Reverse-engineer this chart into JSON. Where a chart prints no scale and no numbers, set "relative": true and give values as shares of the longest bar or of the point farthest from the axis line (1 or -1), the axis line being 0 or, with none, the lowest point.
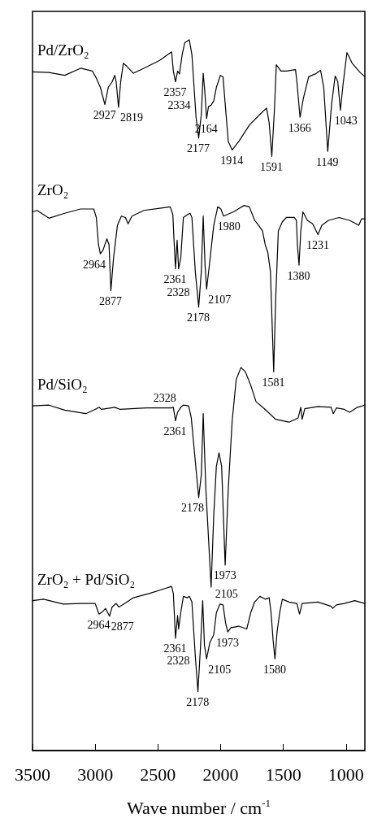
{
  "chart_data": {
    "type": "line",
    "relative": true,
    "xlabel": "Wave number / cm$^{-1}$",
    "xlim": [
      3500,
      850
    ],
    "xticks": [
      3500,
      3000,
      2500,
      2000,
      1500,
      1000
    ],
    "line_style": "solid",
    "series": [
      {
        "name": "Pd/ZrO₂",
        "color": "#000000",
        "x": [
          3500,
          3369,
          3243,
          3117,
          3022,
          2991,
          2959,
          2923,
          2896,
          2865,
          2844,
          2833,
          2814,
          2797,
          2776,
          2749,
          2696,
          2612,
          2486,
          2391,
          2377,
          2360,
          2343,
          2328,
          2307,
          2286,
          2250,
          2229,
          2196,
          2175,
          2154,
          2139,
          2124,
          2112,
          2097,
          2076,
          2055,
          2034,
          2002,
          1981,
          1960,
          1939,
          1908,
          1855,
          1771,
          1687,
          1634,
          1613,
          1592,
          1571,
          1556,
          1519,
          1476,
          1403,
          1392,
          1367,
          1340,
          1298,
          1245,
          1203,
          1178,
          1146,
          1115,
          1087,
          1066,
          1045,
          1024,
          993,
          951,
          888,
          850
        ],
        "values": [
          0.955,
          0.954,
          0.95,
          0.96,
          0.956,
          0.946,
          0.933,
          0.909,
          0.933,
          0.941,
          0.95,
          0.941,
          0.905,
          0.941,
          0.967,
          0.963,
          0.953,
          0.96,
          0.971,
          0.983,
          0.956,
          0.941,
          0.956,
          0.952,
          0.979,
          0.996,
          1,
          0.979,
          0.891,
          0.862,
          0.895,
          0.953,
          0.922,
          0.889,
          0.906,
          0.908,
          0.914,
          0.933,
          0.95,
          0.948,
          0.902,
          0.857,
          0.845,
          0.857,
          0.88,
          0.895,
          0.904,
          0.883,
          0.836,
          0.902,
          0.965,
          0.956,
          0.956,
          0.958,
          0.941,
          0.891,
          0.918,
          0.948,
          0.952,
          0.957,
          0.933,
          0.843,
          0.91,
          0.949,
          0.941,
          0.901,
          0.937,
          0.982,
          0.967,
          0.954,
          0.948
        ]
      },
      {
        "name": "ZrO₂",
        "color": "#000000",
        "x": [
          3500,
          3464,
          3369,
          3243,
          3117,
          3012,
          2991,
          2974,
          2959,
          2938,
          2907,
          2890,
          2875,
          2854,
          2823,
          2791,
          2759,
          2738,
          2707,
          2612,
          2486,
          2402,
          2381,
          2370,
          2360,
          2347,
          2335,
          2318,
          2297,
          2265,
          2244,
          2229,
          2202,
          2175,
          2154,
          2139,
          2124,
          2112,
          2086,
          2055,
          2023,
          1998,
          1977,
          1897,
          1813,
          1771,
          1729,
          1697,
          1666,
          1645,
          1624,
          1603,
          1577,
          1561,
          1540,
          1508,
          1476,
          1413,
          1396,
          1388,
          1375,
          1361,
          1344,
          1308,
          1266,
          1224,
          1193,
          1140,
          1056,
          972,
          898,
          877,
          850
        ],
        "values": [
          0.758,
          0.76,
          0.749,
          0.756,
          0.762,
          0.762,
          0.75,
          0.712,
          0.699,
          0.704,
          0.72,
          0.712,
          0.647,
          0.693,
          0.739,
          0.752,
          0.75,
          0.741,
          0.752,
          0.76,
          0.763,
          0.765,
          0.754,
          0.712,
          0.678,
          0.718,
          0.678,
          0.693,
          0.75,
          0.754,
          0.756,
          0.75,
          0.674,
          0.624,
          0.674,
          0.752,
          0.682,
          0.649,
          0.689,
          0.739,
          0.765,
          0.762,
          0.752,
          0.758,
          0.767,
          0.765,
          0.746,
          0.739,
          0.731,
          0.712,
          0.701,
          0.674,
          0.533,
          0.636,
          0.731,
          0.744,
          0.75,
          0.75,
          0.746,
          0.712,
          0.683,
          0.731,
          0.758,
          0.746,
          0.741,
          0.726,
          0.739,
          0.746,
          0.75,
          0.746,
          0.739,
          0.748,
          0.748
        ]
      },
      {
        "name": "Pd/SiO₂",
        "color": "#000000",
        "x": [
          3500,
          3369,
          3243,
          3075,
          3001,
          2970,
          2949,
          2844,
          2801,
          2591,
          2391,
          2377,
          2360,
          2343,
          2318,
          2297,
          2255,
          2234,
          2202,
          2175,
          2154,
          2139,
          2118,
          2076,
          2055,
          2034,
          2013,
          1992,
          1964,
          1939,
          1908,
          1876,
          1838,
          1803,
          1760,
          1718,
          1645,
          1561,
          1455,
          1382,
          1361,
          1350,
          1329,
          1224,
          1119,
          1102,
          1077,
          1014,
          972,
          909,
          850
        ],
        "values": [
          0.485,
          0.486,
          0.479,
          0.474,
          0.48,
          0.483,
          0.48,
          0.483,
          0.48,
          0.482,
          0.482,
          0.483,
          0.464,
          0.476,
          0.483,
          0.486,
          0.485,
          0.468,
          0.407,
          0.356,
          0.388,
          0.474,
          0.369,
          0.23,
          0.331,
          0.4,
          0.419,
          0.4,
          0.261,
          0.369,
          0.464,
          0.522,
          0.539,
          0.533,
          0.514,
          0.491,
          0.48,
          0.466,
          0.462,
          0.468,
          0.483,
          0.466,
          0.481,
          0.484,
          0.483,
          0.474,
          0.482,
          0.48,
          0.476,
          0.483,
          0.486
        ]
      },
      {
        "name": "ZrO₂ + Pd/SiO₂",
        "color": "#000000",
        "x": [
          3500,
          3411,
          3254,
          3117,
          3001,
          2970,
          2938,
          2917,
          2886,
          2865,
          2833,
          2812,
          2780,
          2696,
          2570,
          2444,
          2391,
          2377,
          2360,
          2343,
          2335,
          2318,
          2297,
          2265,
          2250,
          2229,
          2202,
          2181,
          2160,
          2143,
          2129,
          2112,
          2086,
          2055,
          2034,
          2006,
          1981,
          1960,
          1943,
          1918,
          1855,
          1792,
          1760,
          1729,
          1687,
          1645,
          1613,
          1598,
          1582,
          1567,
          1550,
          1529,
          1508,
          1455,
          1392,
          1371,
          1350,
          1224,
          1119,
          1106,
          1077,
          1014,
          930,
          850
        ],
        "values": [
          0.211,
          0.213,
          0.206,
          0.207,
          0.207,
          0.192,
          0.196,
          0.2,
          0.189,
          0.202,
          0.207,
          0.202,
          0.205,
          0.215,
          0.221,
          0.228,
          0.231,
          0.221,
          0.158,
          0.19,
          0.171,
          0.194,
          0.217,
          0.215,
          0.217,
          0.209,
          0.133,
          0.083,
          0.148,
          0.211,
          0.148,
          0.129,
          0.152,
          0.163,
          0.194,
          0.206,
          0.205,
          0.179,
          0.167,
          0.173,
          0.175,
          0.171,
          0.194,
          0.209,
          0.217,
          0.213,
          0.215,
          0.194,
          0.156,
          0.129,
          0.167,
          0.194,
          0.213,
          0.209,
          0.207,
          0.192,
          0.207,
          0.209,
          0.203,
          0.2,
          0.205,
          0.207,
          0.211,
          0.207
        ]
      }
    ],
    "annotations": [
      {
        "text": "2927",
        "x": 2923,
        "y": 0.909
      },
      {
        "text": "2819",
        "x": 2814,
        "y": 0.905
      },
      {
        "text": "2357",
        "x": 2360,
        "y": 0.941
      },
      {
        "text": "2334",
        "x": 2328,
        "y": 0.952
      },
      {
        "text": "2177",
        "x": 2175,
        "y": 0.862
      },
      {
        "text": "2164",
        "x": 2112,
        "y": 0.889
      },
      {
        "text": "1914",
        "x": 1908,
        "y": 0.845
      },
      {
        "text": "1591",
        "x": 1592,
        "y": 0.836
      },
      {
        "text": "1366",
        "x": 1367,
        "y": 0.891
      },
      {
        "text": "1149",
        "x": 1146,
        "y": 0.843
      },
      {
        "text": "1043",
        "x": 1045,
        "y": 0.901
      },
      {
        "text": "2964",
        "x": 2959,
        "y": 0.699
      },
      {
        "text": "2877",
        "x": 2875,
        "y": 0.647
      },
      {
        "text": "2361",
        "x": 2360,
        "y": 0.678
      },
      {
        "text": "2328",
        "x": 2335,
        "y": 0.678
      },
      {
        "text": "2178",
        "x": 2175,
        "y": 0.624
      },
      {
        "text": "2107",
        "x": 2112,
        "y": 0.649
      },
      {
        "text": "1980",
        "x": 1977,
        "y": 0.752
      },
      {
        "text": "1581",
        "x": 1577,
        "y": 0.533
      },
      {
        "text": "1380",
        "x": 1375,
        "y": 0.683
      },
      {
        "text": "1231",
        "x": 1224,
        "y": 0.726
      },
      {
        "text": "2361",
        "x": 2360,
        "y": 0.464
      },
      {
        "text": "2328",
        "x": 2318,
        "y": 0.483
      },
      {
        "text": "2178",
        "x": 2175,
        "y": 0.356
      },
      {
        "text": "2105",
        "x": 2076,
        "y": 0.23
      },
      {
        "text": "1973",
        "x": 1964,
        "y": 0.261
      },
      {
        "text": "2964",
        "x": 2970,
        "y": 0.192
      },
      {
        "text": "2877",
        "x": 2886,
        "y": 0.189
      },
      {
        "text": "2361",
        "x": 2360,
        "y": 0.158
      },
      {
        "text": "2328",
        "x": 2335,
        "y": 0.171
      },
      {
        "text": "2178",
        "x": 2181,
        "y": 0.083
      },
      {
        "text": "2105",
        "x": 2112,
        "y": 0.129
      },
      {
        "text": "1973",
        "x": 1943,
        "y": 0.167
      },
      {
        "text": "1580",
        "x": 1567,
        "y": 0.129
      }
    ]
  }
}
